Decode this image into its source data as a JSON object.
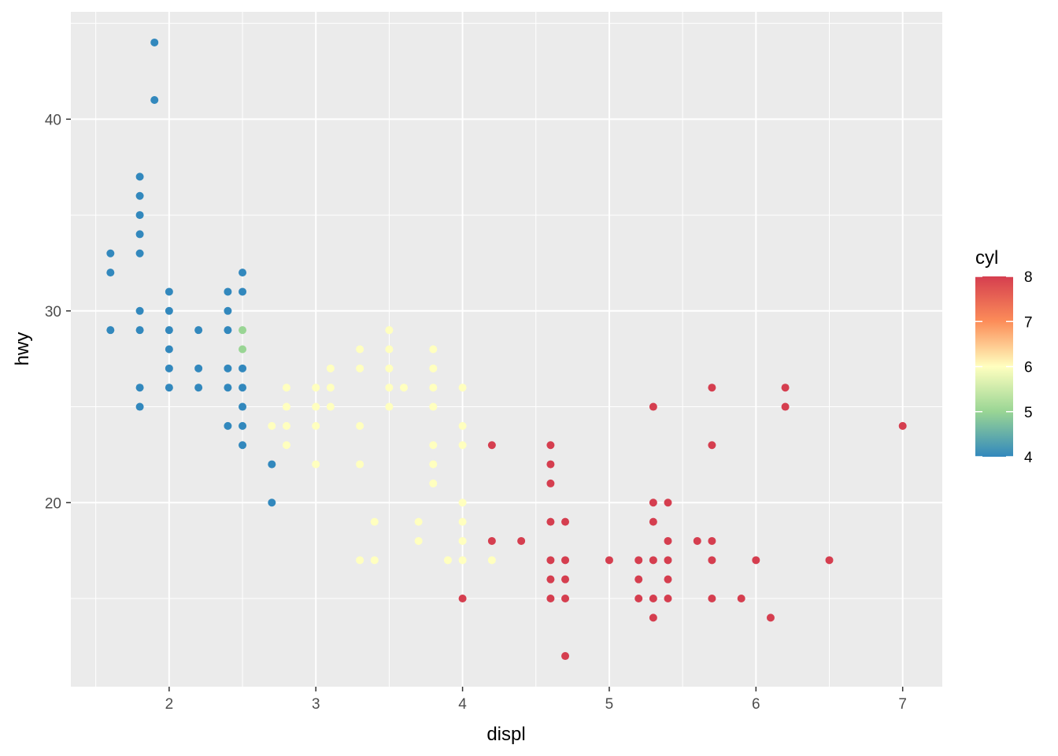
{
  "chart_data": {
    "type": "scatter",
    "title": "",
    "xlabel": "displ",
    "ylabel": "hwy",
    "xlim": [
      1.33,
      7.27
    ],
    "ylim": [
      10.4,
      45.6
    ],
    "x_ticks": [
      2,
      3,
      4,
      5,
      6,
      7
    ],
    "y_ticks": [
      20,
      30,
      40
    ],
    "grid": true,
    "legend": {
      "title": "cyl",
      "type": "colorbar",
      "placement": "right",
      "min": 4,
      "max": 8,
      "ticks": [
        4,
        5,
        6,
        7,
        8
      ],
      "palette": [
        "#3288bd",
        "#99d594",
        "#ffffbf",
        "#fc8d59",
        "#d53e4f"
      ]
    },
    "colors": {
      "panel_background": "#ebebeb",
      "grid": "#ffffff",
      "cyl4": "#3288bd",
      "cyl5": "#99d594",
      "cyl6": "#ffffbf",
      "cyl8": "#d53e4f"
    },
    "points": [
      {
        "x": 1.9,
        "y": 44,
        "cyl": 4
      },
      {
        "x": 1.9,
        "y": 41,
        "cyl": 4
      },
      {
        "x": 1.6,
        "y": 33,
        "cyl": 4
      },
      {
        "x": 1.6,
        "y": 32,
        "cyl": 4
      },
      {
        "x": 1.6,
        "y": 29,
        "cyl": 4
      },
      {
        "x": 1.8,
        "y": 37,
        "cyl": 4
      },
      {
        "x": 1.8,
        "y": 36,
        "cyl": 4
      },
      {
        "x": 1.8,
        "y": 35,
        "cyl": 4
      },
      {
        "x": 1.8,
        "y": 34,
        "cyl": 4
      },
      {
        "x": 1.8,
        "y": 33,
        "cyl": 4
      },
      {
        "x": 1.8,
        "y": 30,
        "cyl": 4
      },
      {
        "x": 1.8,
        "y": 29,
        "cyl": 4
      },
      {
        "x": 1.8,
        "y": 26,
        "cyl": 4
      },
      {
        "x": 1.8,
        "y": 25,
        "cyl": 4
      },
      {
        "x": 2.0,
        "y": 31,
        "cyl": 4
      },
      {
        "x": 2.0,
        "y": 30,
        "cyl": 4
      },
      {
        "x": 2.0,
        "y": 29,
        "cyl": 4
      },
      {
        "x": 2.0,
        "y": 28,
        "cyl": 4
      },
      {
        "x": 2.0,
        "y": 27,
        "cyl": 4
      },
      {
        "x": 2.0,
        "y": 26,
        "cyl": 4
      },
      {
        "x": 2.2,
        "y": 29,
        "cyl": 4
      },
      {
        "x": 2.2,
        "y": 27,
        "cyl": 4
      },
      {
        "x": 2.2,
        "y": 26,
        "cyl": 4
      },
      {
        "x": 2.4,
        "y": 31,
        "cyl": 4
      },
      {
        "x": 2.4,
        "y": 30,
        "cyl": 4
      },
      {
        "x": 2.4,
        "y": 29,
        "cyl": 4
      },
      {
        "x": 2.4,
        "y": 27,
        "cyl": 4
      },
      {
        "x": 2.4,
        "y": 26,
        "cyl": 4
      },
      {
        "x": 2.4,
        "y": 24,
        "cyl": 4
      },
      {
        "x": 2.5,
        "y": 32,
        "cyl": 4
      },
      {
        "x": 2.5,
        "y": 31,
        "cyl": 4
      },
      {
        "x": 2.5,
        "y": 27,
        "cyl": 4
      },
      {
        "x": 2.5,
        "y": 26,
        "cyl": 4
      },
      {
        "x": 2.5,
        "y": 25,
        "cyl": 4
      },
      {
        "x": 2.5,
        "y": 24,
        "cyl": 4
      },
      {
        "x": 2.5,
        "y": 23,
        "cyl": 4
      },
      {
        "x": 2.5,
        "y": 29,
        "cyl": 5
      },
      {
        "x": 2.5,
        "y": 28,
        "cyl": 5
      },
      {
        "x": 2.7,
        "y": 22,
        "cyl": 4
      },
      {
        "x": 2.7,
        "y": 20,
        "cyl": 4
      },
      {
        "x": 2.7,
        "y": 24,
        "cyl": 6
      },
      {
        "x": 2.8,
        "y": 26,
        "cyl": 6
      },
      {
        "x": 2.8,
        "y": 25,
        "cyl": 6
      },
      {
        "x": 2.8,
        "y": 24,
        "cyl": 6
      },
      {
        "x": 2.8,
        "y": 23,
        "cyl": 6
      },
      {
        "x": 3.0,
        "y": 26,
        "cyl": 6
      },
      {
        "x": 3.0,
        "y": 25,
        "cyl": 6
      },
      {
        "x": 3.0,
        "y": 24,
        "cyl": 6
      },
      {
        "x": 3.0,
        "y": 22,
        "cyl": 6
      },
      {
        "x": 3.1,
        "y": 27,
        "cyl": 6
      },
      {
        "x": 3.1,
        "y": 26,
        "cyl": 6
      },
      {
        "x": 3.1,
        "y": 25,
        "cyl": 6
      },
      {
        "x": 3.3,
        "y": 28,
        "cyl": 6
      },
      {
        "x": 3.3,
        "y": 27,
        "cyl": 6
      },
      {
        "x": 3.3,
        "y": 24,
        "cyl": 6
      },
      {
        "x": 3.3,
        "y": 22,
        "cyl": 6
      },
      {
        "x": 3.3,
        "y": 17,
        "cyl": 6
      },
      {
        "x": 3.4,
        "y": 19,
        "cyl": 6
      },
      {
        "x": 3.4,
        "y": 17,
        "cyl": 6
      },
      {
        "x": 3.5,
        "y": 29,
        "cyl": 6
      },
      {
        "x": 3.5,
        "y": 28,
        "cyl": 6
      },
      {
        "x": 3.5,
        "y": 27,
        "cyl": 6
      },
      {
        "x": 3.5,
        "y": 26,
        "cyl": 6
      },
      {
        "x": 3.5,
        "y": 25,
        "cyl": 6
      },
      {
        "x": 3.6,
        "y": 26,
        "cyl": 6
      },
      {
        "x": 3.7,
        "y": 19,
        "cyl": 6
      },
      {
        "x": 3.7,
        "y": 18,
        "cyl": 6
      },
      {
        "x": 3.8,
        "y": 28,
        "cyl": 6
      },
      {
        "x": 3.8,
        "y": 27,
        "cyl": 6
      },
      {
        "x": 3.8,
        "y": 26,
        "cyl": 6
      },
      {
        "x": 3.8,
        "y": 25,
        "cyl": 6
      },
      {
        "x": 3.8,
        "y": 23,
        "cyl": 6
      },
      {
        "x": 3.8,
        "y": 22,
        "cyl": 6
      },
      {
        "x": 3.8,
        "y": 21,
        "cyl": 6
      },
      {
        "x": 3.9,
        "y": 17,
        "cyl": 6
      },
      {
        "x": 4.0,
        "y": 26,
        "cyl": 6
      },
      {
        "x": 4.0,
        "y": 24,
        "cyl": 6
      },
      {
        "x": 4.0,
        "y": 23,
        "cyl": 6
      },
      {
        "x": 4.0,
        "y": 20,
        "cyl": 6
      },
      {
        "x": 4.0,
        "y": 19,
        "cyl": 6
      },
      {
        "x": 4.0,
        "y": 18,
        "cyl": 6
      },
      {
        "x": 4.0,
        "y": 17,
        "cyl": 6
      },
      {
        "x": 4.0,
        "y": 15,
        "cyl": 8
      },
      {
        "x": 4.2,
        "y": 17,
        "cyl": 6
      },
      {
        "x": 4.2,
        "y": 23,
        "cyl": 8
      },
      {
        "x": 4.2,
        "y": 18,
        "cyl": 8
      },
      {
        "x": 4.4,
        "y": 18,
        "cyl": 8
      },
      {
        "x": 4.6,
        "y": 23,
        "cyl": 8
      },
      {
        "x": 4.6,
        "y": 22,
        "cyl": 8
      },
      {
        "x": 4.6,
        "y": 21,
        "cyl": 8
      },
      {
        "x": 4.6,
        "y": 19,
        "cyl": 8
      },
      {
        "x": 4.6,
        "y": 17,
        "cyl": 8
      },
      {
        "x": 4.6,
        "y": 16,
        "cyl": 8
      },
      {
        "x": 4.6,
        "y": 15,
        "cyl": 8
      },
      {
        "x": 4.7,
        "y": 19,
        "cyl": 8
      },
      {
        "x": 4.7,
        "y": 17,
        "cyl": 8
      },
      {
        "x": 4.7,
        "y": 16,
        "cyl": 8
      },
      {
        "x": 4.7,
        "y": 15,
        "cyl": 8
      },
      {
        "x": 4.7,
        "y": 12,
        "cyl": 8
      },
      {
        "x": 5.0,
        "y": 17,
        "cyl": 8
      },
      {
        "x": 5.2,
        "y": 17,
        "cyl": 8
      },
      {
        "x": 5.2,
        "y": 16,
        "cyl": 8
      },
      {
        "x": 5.2,
        "y": 15,
        "cyl": 8
      },
      {
        "x": 5.3,
        "y": 25,
        "cyl": 8
      },
      {
        "x": 5.3,
        "y": 20,
        "cyl": 8
      },
      {
        "x": 5.3,
        "y": 19,
        "cyl": 8
      },
      {
        "x": 5.3,
        "y": 17,
        "cyl": 8
      },
      {
        "x": 5.3,
        "y": 15,
        "cyl": 8
      },
      {
        "x": 5.3,
        "y": 14,
        "cyl": 8
      },
      {
        "x": 5.4,
        "y": 20,
        "cyl": 8
      },
      {
        "x": 5.4,
        "y": 18,
        "cyl": 8
      },
      {
        "x": 5.4,
        "y": 17,
        "cyl": 8
      },
      {
        "x": 5.4,
        "y": 16,
        "cyl": 8
      },
      {
        "x": 5.4,
        "y": 15,
        "cyl": 8
      },
      {
        "x": 5.6,
        "y": 18,
        "cyl": 8
      },
      {
        "x": 5.7,
        "y": 26,
        "cyl": 8
      },
      {
        "x": 5.7,
        "y": 23,
        "cyl": 8
      },
      {
        "x": 5.7,
        "y": 18,
        "cyl": 8
      },
      {
        "x": 5.7,
        "y": 17,
        "cyl": 8
      },
      {
        "x": 5.7,
        "y": 15,
        "cyl": 8
      },
      {
        "x": 5.9,
        "y": 15,
        "cyl": 8
      },
      {
        "x": 6.0,
        "y": 17,
        "cyl": 8
      },
      {
        "x": 6.1,
        "y": 14,
        "cyl": 8
      },
      {
        "x": 6.2,
        "y": 26,
        "cyl": 8
      },
      {
        "x": 6.2,
        "y": 25,
        "cyl": 8
      },
      {
        "x": 6.5,
        "y": 17,
        "cyl": 8
      },
      {
        "x": 7.0,
        "y": 24,
        "cyl": 8
      }
    ]
  }
}
